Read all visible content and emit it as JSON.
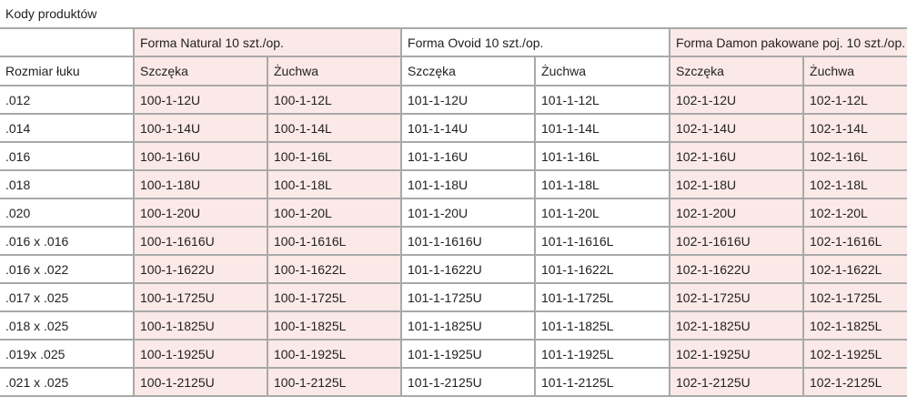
{
  "title": "Kody produktów",
  "groups": [
    {
      "label": "Forma Natural 10 szt./op.",
      "highlight": true
    },
    {
      "label": "Forma Ovoid 10 szt./op.",
      "highlight": false
    },
    {
      "label": "Forma Damon pakowane poj. 10 szt./op.",
      "highlight": true
    }
  ],
  "subheader": {
    "size_label": "Rozmiar łuku",
    "upper": "Szczęka",
    "lower": "Żuchwa"
  },
  "highlight_color": "#fbe9e7",
  "rows": [
    [
      ".012",
      "100-1-12U",
      "100-1-12L",
      "101-1-12U",
      "101-1-12L",
      "102-1-12U",
      "102-1-12L"
    ],
    [
      ".014",
      "100-1-14U",
      "100-1-14L",
      "101-1-14U",
      "101-1-14L",
      "102-1-14U",
      "102-1-14L"
    ],
    [
      ".016",
      "100-1-16U",
      "100-1-16L",
      "101-1-16U",
      "101-1-16L",
      "102-1-16U",
      "102-1-16L"
    ],
    [
      ".018",
      "100-1-18U",
      "100-1-18L",
      "101-1-18U",
      "101-1-18L",
      "102-1-18U",
      "102-1-18L"
    ],
    [
      ".020",
      "100-1-20U",
      "100-1-20L",
      "101-1-20U",
      "101-1-20L",
      "102-1-20U",
      "102-1-20L"
    ],
    [
      ".016 x .016",
      "100-1-1616U",
      "100-1-1616L",
      "101-1-1616U",
      "101-1-1616L",
      "102-1-1616U",
      "102-1-1616L"
    ],
    [
      ".016 x .022",
      "100-1-1622U",
      "100-1-1622L",
      "101-1-1622U",
      "101-1-1622L",
      "102-1-1622U",
      "102-1-1622L"
    ],
    [
      ".017 x .025",
      "100-1-1725U",
      "100-1-1725L",
      "101-1-1725U",
      "101-1-1725L",
      "102-1-1725U",
      "102-1-1725L"
    ],
    [
      ".018 x .025",
      "100-1-1825U",
      "100-1-1825L",
      "101-1-1825U",
      "101-1-1825L",
      "102-1-1825U",
      "102-1-1825L"
    ],
    [
      ".019x .025",
      "100-1-1925U",
      "100-1-1925L",
      "101-1-1925U",
      "101-1-1925L",
      "102-1-1925U",
      "102-1-1925L"
    ],
    [
      ".021 x .025",
      "100-1-2125U",
      "100-1-2125L",
      "101-1-2125U",
      "101-1-2125L",
      "102-1-2125U",
      "102-1-2125L"
    ]
  ]
}
